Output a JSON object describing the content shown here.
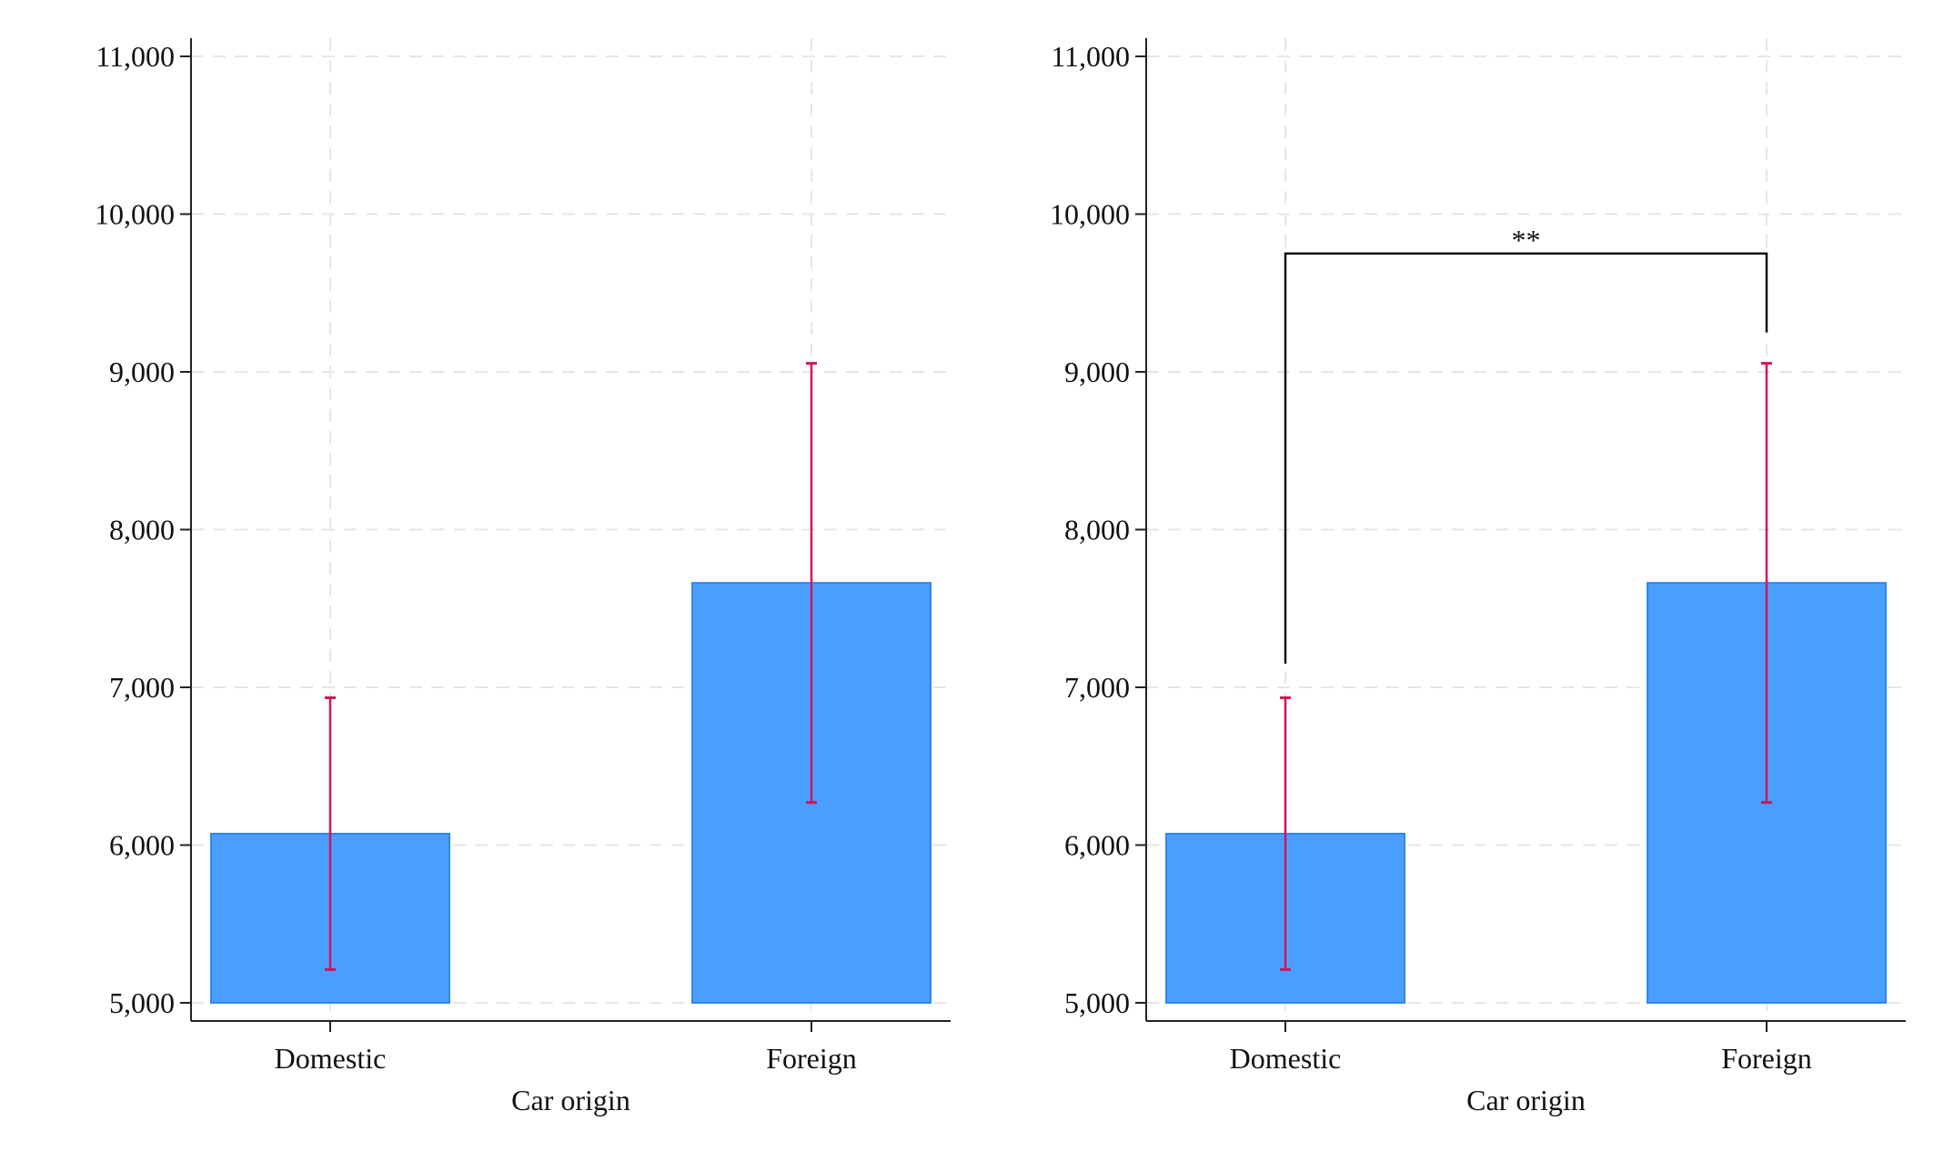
{
  "colors": {
    "bar_fill": "#4a9eff",
    "bar_stroke": "#2f86f0",
    "error_bar": "#d4145a",
    "grid": "#e6e6e6",
    "axis": "#222222",
    "bracket": "#111111"
  },
  "chart_data": [
    {
      "type": "bar",
      "categories": [
        "Domestic",
        "Foreign"
      ],
      "values": [
        6072,
        7662
      ],
      "error_low": [
        5211,
        6270
      ],
      "error_high": [
        6934,
        9054
      ],
      "xlabel": "Car origin",
      "ylabel": "",
      "ylim": [
        5000,
        11000
      ],
      "yticks": [
        5000,
        6000,
        7000,
        8000,
        9000,
        10000,
        11000
      ],
      "ytick_labels": [
        "5,000",
        "6,000",
        "7,000",
        "8,000",
        "9,000",
        "10,000",
        "11,000"
      ],
      "grid": true,
      "significance": null
    },
    {
      "type": "bar",
      "categories": [
        "Domestic",
        "Foreign"
      ],
      "values": [
        6072,
        7662
      ],
      "error_low": [
        5211,
        6270
      ],
      "error_high": [
        6934,
        9054
      ],
      "xlabel": "Car origin",
      "ylabel": "",
      "ylim": [
        5000,
        11000
      ],
      "yticks": [
        5000,
        6000,
        7000,
        8000,
        9000,
        10000,
        11000
      ],
      "ytick_labels": [
        "5,000",
        "6,000",
        "7,000",
        "8,000",
        "9,000",
        "10,000",
        "11,000"
      ],
      "grid": true,
      "significance": {
        "label": "**",
        "bracket_y": 9750,
        "left_end": 7150,
        "right_end": 9250
      }
    }
  ]
}
